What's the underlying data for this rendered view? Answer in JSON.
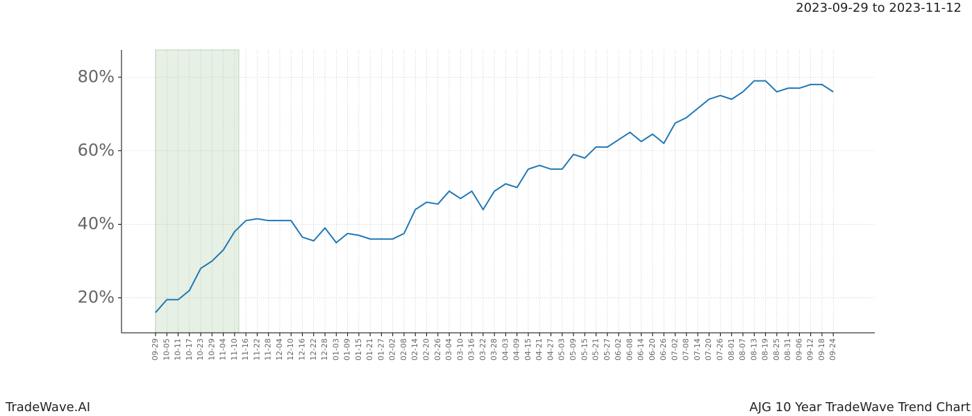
{
  "chart_data": {
    "type": "line",
    "title": "2023-09-29 to 2023-11-12",
    "footer_left": "TradeWave.AI",
    "footer_right": "AJG 10 Year TradeWave Trend Chart",
    "categories": [
      "09-29",
      "10-05",
      "10-11",
      "10-17",
      "10-23",
      "10-29",
      "11-04",
      "11-10",
      "11-16",
      "11-22",
      "11-28",
      "12-04",
      "12-10",
      "12-16",
      "12-22",
      "12-28",
      "01-03",
      "01-09",
      "01-15",
      "01-21",
      "01-27",
      "02-02",
      "02-08",
      "02-14",
      "02-20",
      "02-26",
      "03-04",
      "03-10",
      "03-16",
      "03-22",
      "03-28",
      "04-03",
      "04-09",
      "04-15",
      "04-21",
      "04-27",
      "05-03",
      "05-09",
      "05-15",
      "05-21",
      "05-27",
      "06-02",
      "06-08",
      "06-14",
      "06-20",
      "06-26",
      "07-02",
      "07-08",
      "07-14",
      "07-20",
      "07-26",
      "08-01",
      "08-07",
      "08-13",
      "08-19",
      "08-25",
      "08-31",
      "09-06",
      "09-12",
      "09-18",
      "09-24"
    ],
    "series": [
      {
        "color": "#1f77b4",
        "values": [
          16,
          19.5,
          19.5,
          22,
          28,
          30,
          33,
          38,
          41,
          41.5,
          41,
          41,
          41,
          36.5,
          35.5,
          39,
          35,
          37.5,
          37,
          36,
          36,
          36,
          37.5,
          44,
          46,
          45.5,
          49,
          47,
          49,
          44,
          49,
          51,
          50,
          55,
          56,
          55,
          55,
          59,
          58,
          61,
          61,
          63,
          65,
          62.5,
          64.5,
          62,
          67.5,
          69,
          71.5,
          74,
          75,
          74,
          76,
          79,
          79,
          76,
          77,
          77,
          78,
          78,
          76
        ]
      }
    ],
    "ylim": [
      10.5,
      87.4
    ],
    "yticks": [
      {
        "value": 20,
        "label": "20%"
      },
      {
        "value": 40,
        "label": "40%"
      },
      {
        "value": 60,
        "label": "60%"
      },
      {
        "value": 80,
        "label": "80%"
      }
    ],
    "grid": true
  }
}
